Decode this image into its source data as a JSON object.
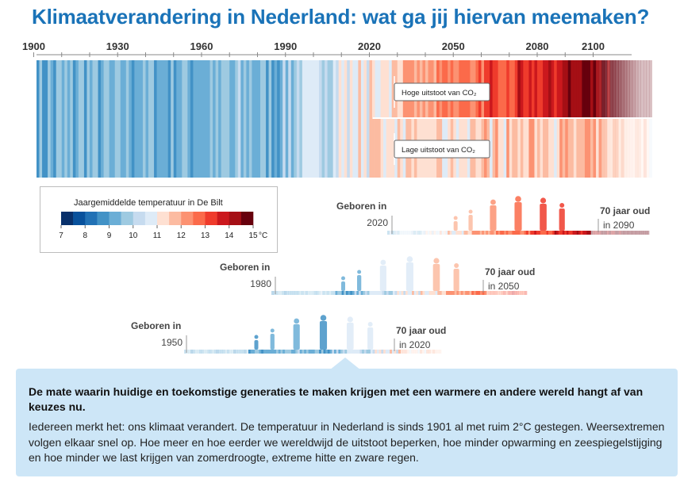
{
  "title": "Klimaatverandering in Nederland: wat ga jij hiervan meemaken?",
  "info": {
    "lead": "De mate waarin huidige en toekomstige generaties te maken krijgen met een warmere en andere wereld hangt af van keuzes nu.",
    "body": "Iedereen merkt het: ons klimaat verandert. De temperatuur in Nederland is sinds 1901 al met ruim 2°C gestegen. Weersextremen volgen elkaar snel op. Hoe meer en hoe eerder we wereldwijd de uitstoot beperken, hoe minder opwarming en zeespiegelstijging en hoe minder we last krijgen van zomerdroogte, extreme hitte en zware regen."
  },
  "chart_data": {
    "type": "heatmap",
    "x_range": [
      1901,
      2120
    ],
    "x_ticks": [
      "1900",
      "1930",
      "1960",
      "1990",
      "2020",
      "2050",
      "2080",
      "2100"
    ],
    "scenario_labels": [
      "Hoge uitstoot van CO₂",
      "Lage uitstoot van CO₂"
    ],
    "legend": {
      "title": "Jaargemiddelde temperatuur in De Bilt",
      "ticks": [
        "7",
        "8",
        "9",
        "10",
        "11",
        "12",
        "13",
        "14",
        "15"
      ],
      "unit": "°C",
      "colors": [
        "#08306b",
        "#08519c",
        "#2171b5",
        "#4292c6",
        "#6baed6",
        "#9ecae1",
        "#c6dbef",
        "#deebf7",
        "#fee0d2",
        "#fcbba1",
        "#fc9272",
        "#fb6a4a",
        "#ef3b2c",
        "#cb181d",
        "#a50f15",
        "#67000d"
      ]
    },
    "generations": [
      {
        "born_label": "Geboren in",
        "born_year": "2020",
        "age_label": "70 jaar oud",
        "end_label": "in 2090"
      },
      {
        "born_label": "Geboren in",
        "born_year": "1980",
        "age_label": "70 jaar oud",
        "end_label": "in 2050"
      },
      {
        "born_label": "Geboren in",
        "born_year": "1950",
        "age_label": "70 jaar oud",
        "end_label": "in 2020"
      }
    ]
  }
}
